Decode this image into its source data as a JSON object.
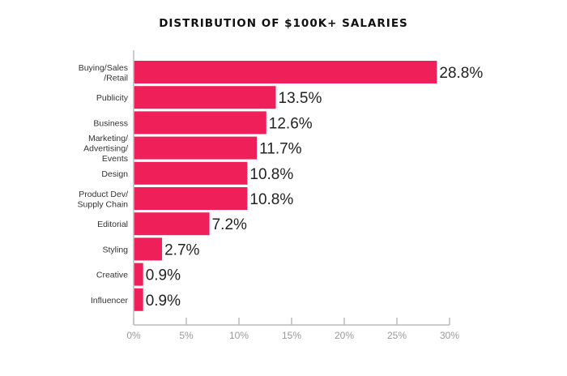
{
  "chart_data": {
    "type": "bar",
    "orientation": "horizontal",
    "title": "DISTRIBUTION OF $100K+ SALARIES",
    "categories": [
      [
        "Buying/Sales",
        "/Retail"
      ],
      [
        "Publicity"
      ],
      [
        "Business"
      ],
      [
        "Marketing/",
        "Advertising/",
        "Events"
      ],
      [
        "Design"
      ],
      [
        "Product Dev/",
        "Supply Chain"
      ],
      [
        "Editorial"
      ],
      [
        "Styling"
      ],
      [
        "Creative"
      ],
      [
        "Influencer"
      ]
    ],
    "values": [
      28.8,
      13.5,
      12.6,
      11.7,
      10.8,
      10.8,
      7.2,
      2.7,
      0.9,
      0.9
    ],
    "value_labels": [
      "28.8%",
      "13.5%",
      "12.6%",
      "11.7%",
      "10.8%",
      "10.8%",
      "7.2%",
      "2.7%",
      "0.9%",
      "0.9%"
    ],
    "xlim": [
      0,
      30
    ],
    "xticks": [
      0,
      5,
      10,
      15,
      20,
      25,
      30
    ],
    "xtick_labels": [
      "0%",
      "5%",
      "10%",
      "15%",
      "20%",
      "25%",
      "30%"
    ],
    "xlabel": "",
    "ylabel": "",
    "grid": false,
    "colors": {
      "bar": "#ef1f59",
      "axis": "#bbbbbb"
    }
  }
}
